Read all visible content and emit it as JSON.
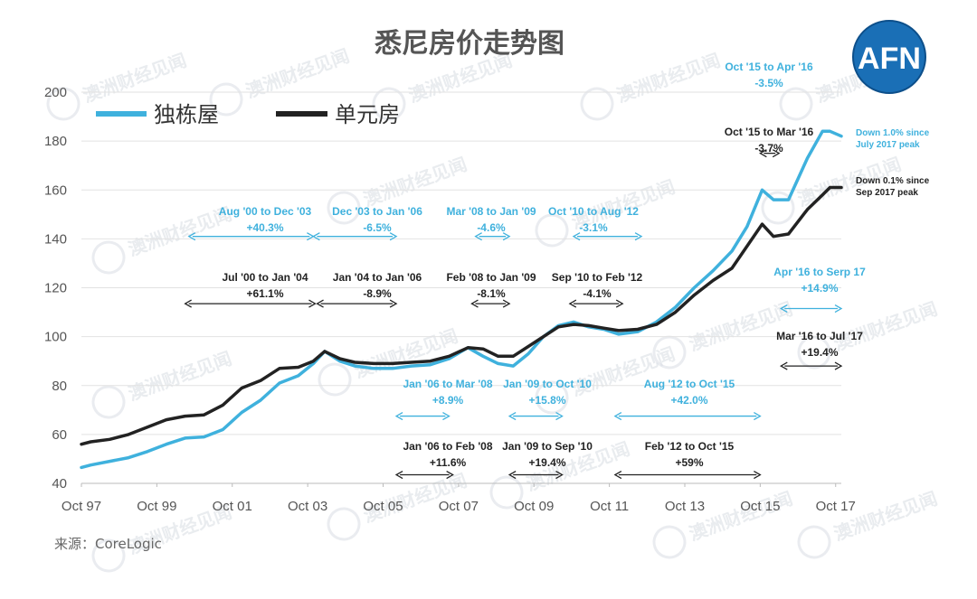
{
  "chart_data": {
    "type": "line",
    "title": "悉尼房价走势图",
    "source": "来源：CoreLogic",
    "logo": "AFN",
    "watermark": "澳洲财经见闻",
    "xlim": [
      1997.75,
      2017.9
    ],
    "ylim": [
      40,
      200
    ],
    "yticks": [
      40,
      60,
      80,
      100,
      120,
      140,
      160,
      180,
      200
    ],
    "xticks": [
      {
        "label": "Oct 97",
        "x": 1997.75
      },
      {
        "label": "Oct 99",
        "x": 1999.75
      },
      {
        "label": "Oct 01",
        "x": 2001.75
      },
      {
        "label": "Oct 03",
        "x": 2003.75
      },
      {
        "label": "Oct 05",
        "x": 2005.75
      },
      {
        "label": "Oct 07",
        "x": 2007.75
      },
      {
        "label": "Oct 09",
        "x": 2009.75
      },
      {
        "label": "Oct 11",
        "x": 2011.75
      },
      {
        "label": "Oct 13",
        "x": 2013.75
      },
      {
        "label": "Oct 15",
        "x": 2015.75
      },
      {
        "label": "Oct 17",
        "x": 2017.75
      }
    ],
    "grid": true,
    "legend_position": "top-left",
    "series": [
      {
        "name": "独栋屋",
        "color": "#3fb1dd",
        "x": [
          1997.75,
          1998.0,
          1998.5,
          1999.0,
          1999.5,
          2000.0,
          2000.5,
          2001.0,
          2001.5,
          2002.0,
          2002.5,
          2003.0,
          2003.5,
          2003.9,
          2004.2,
          2004.6,
          2005.0,
          2005.5,
          2006.0,
          2006.5,
          2007.0,
          2007.5,
          2008.0,
          2008.4,
          2008.8,
          2009.2,
          2009.6,
          2010.0,
          2010.4,
          2010.8,
          2011.2,
          2011.6,
          2012.0,
          2012.5,
          2013.0,
          2013.5,
          2014.0,
          2014.5,
          2015.0,
          2015.4,
          2015.8,
          2016.1,
          2016.5,
          2017.0,
          2017.4,
          2017.6,
          2017.9
        ],
        "y": [
          46.5,
          47.5,
          49,
          50.5,
          53,
          56,
          58.5,
          59,
          62,
          69,
          74,
          81,
          84,
          89,
          94,
          90,
          88,
          87,
          87,
          88,
          88.5,
          91,
          95.5,
          92,
          89,
          88,
          93,
          100,
          104.5,
          106,
          104,
          103,
          101,
          102,
          106,
          112,
          120,
          127,
          135,
          145,
          160,
          156,
          156,
          173,
          184,
          184,
          182
        ]
      },
      {
        "name": "单元房",
        "color": "#222222",
        "x": [
          1997.75,
          1998.0,
          1998.5,
          1999.0,
          1999.5,
          2000.0,
          2000.5,
          2001.0,
          2001.5,
          2002.0,
          2002.5,
          2003.0,
          2003.5,
          2003.9,
          2004.2,
          2004.6,
          2005.0,
          2005.5,
          2006.0,
          2006.5,
          2007.0,
          2007.5,
          2008.0,
          2008.4,
          2008.8,
          2009.2,
          2009.6,
          2010.0,
          2010.4,
          2010.8,
          2011.2,
          2011.6,
          2012.0,
          2012.5,
          2013.0,
          2013.5,
          2014.0,
          2014.5,
          2015.0,
          2015.4,
          2015.8,
          2016.1,
          2016.5,
          2017.0,
          2017.4,
          2017.6,
          2017.9
        ],
        "y": [
          56,
          57,
          58,
          60,
          63,
          66,
          67.5,
          68,
          72,
          79,
          82,
          87,
          87.5,
          90,
          94,
          91,
          89.5,
          89,
          89,
          89.5,
          90,
          92,
          95.5,
          95,
          92,
          92,
          96,
          100,
          104,
          105,
          104.5,
          103.5,
          102.5,
          103,
          105,
          110,
          117,
          123,
          128,
          137,
          146,
          141,
          142,
          152,
          158,
          161,
          161
        ]
      }
    ],
    "annotations": [
      {
        "label": "Aug '00 to Dec '03",
        "value": "+40.3%",
        "color": "#3fb1dd",
        "x0": 2000.6,
        "x1": 2003.9,
        "y": 141
      },
      {
        "label": "Dec '03 to Jan '06",
        "value": "-6.5%",
        "color": "#3fb1dd",
        "x0": 2003.9,
        "x1": 2006.1,
        "y": 141
      },
      {
        "label": "Mar '08 to Jan '09",
        "value": "-4.6%",
        "color": "#3fb1dd",
        "x0": 2008.2,
        "x1": 2009.1,
        "y": 141
      },
      {
        "label": "Oct '10 to Aug '12",
        "value": "-3.1%",
        "color": "#3fb1dd",
        "x0": 2010.8,
        "x1": 2012.6,
        "y": 141
      },
      {
        "label": "Jul '00 to Jan '04",
        "value": "+61.1%",
        "color": "#222222",
        "x0": 2000.5,
        "x1": 2003.95,
        "y": 113.5
      },
      {
        "label": "Jan '04 to Jan '06",
        "value": "-8.9%",
        "color": "#222222",
        "x0": 2004.0,
        "x1": 2006.1,
        "y": 113.5
      },
      {
        "label": "Feb '08 to Jan '09",
        "value": "-8.1%",
        "color": "#222222",
        "x0": 2008.1,
        "x1": 2009.1,
        "y": 113.5
      },
      {
        "label": "Sep '10 to Feb '12",
        "value": "-4.1%",
        "color": "#222222",
        "x0": 2010.7,
        "x1": 2012.1,
        "y": 113.5
      },
      {
        "label": "Jan '06 to Mar '08",
        "value": "+8.9%",
        "color": "#3fb1dd",
        "x0": 2006.1,
        "x1": 2007.5,
        "y": 67.5
      },
      {
        "label": "Jan '09 to Oct '10",
        "value": "+15.8%",
        "color": "#3fb1dd",
        "x0": 2009.1,
        "x1": 2010.5,
        "y": 67.5
      },
      {
        "label": "Aug '12 to Oct '15",
        "value": "+42.0%",
        "color": "#3fb1dd",
        "x0": 2011.9,
        "x1": 2015.75,
        "y": 67.5
      },
      {
        "label": "Jan '06 to Feb '08",
        "value": "+11.6%",
        "color": "#222222",
        "x0": 2006.1,
        "x1": 2007.6,
        "y": 43.5
      },
      {
        "label": "Jan '09 to Sep '10",
        "value": "+19.4%",
        "color": "#222222",
        "x0": 2009.1,
        "x1": 2010.5,
        "y": 43.5
      },
      {
        "label": "Feb '12 to Oct '15",
        "value": "+59%",
        "color": "#222222",
        "x0": 2011.9,
        "x1": 2015.75,
        "y": 43.5
      },
      {
        "label": "Oct '15 to Apr '16",
        "value": "-3.5%",
        "color": "#3fb1dd",
        "x0": null,
        "x1": null,
        "y": null
      },
      {
        "label": "Oct '15 to Mar '16",
        "value": "-3.7%",
        "color": "#222222",
        "x0": 2015.75,
        "x1": 2016.25,
        "y": 175
      },
      {
        "label": "Apr '16 to Serp 17",
        "value": "+14.9%",
        "color": "#3fb1dd",
        "x0": 2016.3,
        "x1": 2017.9,
        "y": 111.5
      },
      {
        "label": "Mar '16 to Jul '17",
        "value": "+19.4%",
        "color": "#222222",
        "x0": 2016.3,
        "x1": 2017.9,
        "y": 88
      }
    ],
    "notes": [
      {
        "lines": [
          "Down 1.0% since",
          "July 2017 peak"
        ],
        "color": "#3fb1dd"
      },
      {
        "lines": [
          "Down 0.1% since",
          "Sep 2017 peak"
        ],
        "color": "#222222"
      }
    ]
  }
}
